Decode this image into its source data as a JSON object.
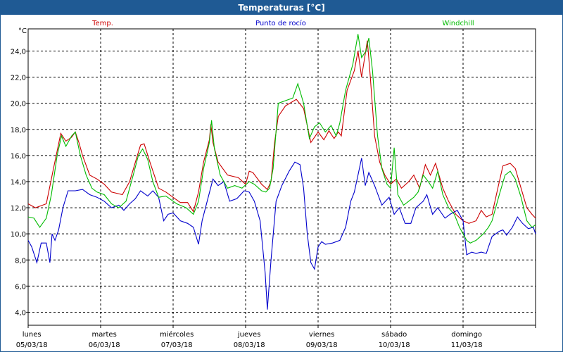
{
  "window": {
    "title": "Temperaturas [°C]"
  },
  "chart_data": {
    "type": "line",
    "title": "Temperaturas [°C]",
    "ylabel": "°C",
    "ylim": [
      3.0,
      25.7
    ],
    "yticks": [
      4,
      6,
      8,
      10,
      12,
      14,
      16,
      18,
      20,
      22,
      24
    ],
    "ytick_labels": [
      "4,0",
      "6,0",
      "8,0",
      "10,0",
      "12,0",
      "14,0",
      "16,0",
      "18,0",
      "20,0",
      "22,0",
      "24,0"
    ],
    "xlim": [
      0,
      7
    ],
    "x_ticks": [
      {
        "x": 0,
        "day": "lunes",
        "date": "05/03/18"
      },
      {
        "x": 1,
        "day": "martes",
        "date": "06/03/18"
      },
      {
        "x": 2,
        "day": "miércoles",
        "date": "07/03/18"
      },
      {
        "x": 3,
        "day": "jueves",
        "date": "08/03/18"
      },
      {
        "x": 4,
        "day": "viernes",
        "date": "09/03/18"
      },
      {
        "x": 5,
        "day": "sábado",
        "date": "10/03/18"
      },
      {
        "x": 6,
        "day": "domingo",
        "date": "11/03/18"
      }
    ],
    "grid": true,
    "series": [
      {
        "name": "Temp.",
        "color": "#cc0000",
        "points": [
          [
            0,
            12.3
          ],
          [
            0.1,
            12.0
          ],
          [
            0.25,
            12.3
          ],
          [
            0.35,
            15.0
          ],
          [
            0.45,
            17.7
          ],
          [
            0.52,
            17.1
          ],
          [
            0.6,
            17.4
          ],
          [
            0.65,
            17.8
          ],
          [
            0.7,
            17.0
          ],
          [
            0.75,
            16.0
          ],
          [
            0.85,
            14.5
          ],
          [
            0.95,
            14.2
          ],
          [
            1.05,
            13.8
          ],
          [
            1.15,
            13.2
          ],
          [
            1.3,
            13.0
          ],
          [
            1.4,
            14.0
          ],
          [
            1.48,
            15.5
          ],
          [
            1.55,
            16.8
          ],
          [
            1.6,
            16.9
          ],
          [
            1.68,
            15.5
          ],
          [
            1.8,
            13.5
          ],
          [
            1.9,
            13.2
          ],
          [
            2.1,
            12.4
          ],
          [
            2.2,
            12.4
          ],
          [
            2.28,
            11.7
          ],
          [
            2.35,
            13.2
          ],
          [
            2.42,
            15.5
          ],
          [
            2.5,
            17.2
          ],
          [
            2.52,
            18.4
          ],
          [
            2.55,
            17.0
          ],
          [
            2.62,
            15.5
          ],
          [
            2.75,
            14.5
          ],
          [
            2.9,
            14.3
          ],
          [
            3.0,
            13.8
          ],
          [
            3.05,
            14.8
          ],
          [
            3.1,
            14.7
          ],
          [
            3.22,
            13.8
          ],
          [
            3.3,
            13.4
          ],
          [
            3.35,
            14.0
          ],
          [
            3.4,
            17.0
          ],
          [
            3.45,
            19.0
          ],
          [
            3.55,
            19.8
          ],
          [
            3.7,
            20.3
          ],
          [
            3.8,
            19.6
          ],
          [
            3.9,
            17.0
          ],
          [
            4.0,
            17.8
          ],
          [
            4.08,
            17.2
          ],
          [
            4.15,
            17.9
          ],
          [
            4.22,
            17.3
          ],
          [
            4.28,
            17.8
          ],
          [
            4.32,
            17.5
          ],
          [
            4.4,
            21.0
          ],
          [
            4.5,
            22.5
          ],
          [
            4.55,
            24.0
          ],
          [
            4.6,
            22.0
          ],
          [
            4.68,
            24.8
          ],
          [
            4.72,
            22.0
          ],
          [
            4.78,
            17.5
          ],
          [
            4.85,
            15.5
          ],
          [
            4.92,
            14.5
          ],
          [
            5.0,
            13.8
          ],
          [
            5.08,
            14.2
          ],
          [
            5.15,
            13.5
          ],
          [
            5.25,
            14.0
          ],
          [
            5.32,
            14.5
          ],
          [
            5.4,
            13.5
          ],
          [
            5.48,
            15.3
          ],
          [
            5.55,
            14.5
          ],
          [
            5.62,
            15.4
          ],
          [
            5.72,
            13.5
          ],
          [
            5.8,
            12.5
          ],
          [
            5.9,
            11.5
          ],
          [
            6.0,
            11.0
          ],
          [
            6.08,
            10.8
          ],
          [
            6.18,
            11.0
          ],
          [
            6.25,
            11.8
          ],
          [
            6.32,
            11.3
          ],
          [
            6.4,
            11.5
          ],
          [
            6.48,
            13.5
          ],
          [
            6.55,
            15.2
          ],
          [
            6.65,
            15.4
          ],
          [
            6.72,
            15.0
          ],
          [
            6.8,
            13.5
          ],
          [
            6.88,
            12.0
          ],
          [
            6.95,
            11.5
          ],
          [
            7.0,
            11.2
          ]
        ]
      },
      {
        "name": "Punto de rocío",
        "color": "#0000cc",
        "points": [
          [
            0,
            9.5
          ],
          [
            0.05,
            9.0
          ],
          [
            0.12,
            7.8
          ],
          [
            0.18,
            9.3
          ],
          [
            0.25,
            9.3
          ],
          [
            0.3,
            7.8
          ],
          [
            0.33,
            10.0
          ],
          [
            0.37,
            9.5
          ],
          [
            0.42,
            10.3
          ],
          [
            0.48,
            12.0
          ],
          [
            0.55,
            13.3
          ],
          [
            0.65,
            13.3
          ],
          [
            0.75,
            13.4
          ],
          [
            0.85,
            13.0
          ],
          [
            0.95,
            12.8
          ],
          [
            1.05,
            12.5
          ],
          [
            1.15,
            12.0
          ],
          [
            1.25,
            12.2
          ],
          [
            1.32,
            11.8
          ],
          [
            1.4,
            12.3
          ],
          [
            1.48,
            12.7
          ],
          [
            1.55,
            13.3
          ],
          [
            1.65,
            12.9
          ],
          [
            1.72,
            13.3
          ],
          [
            1.8,
            12.8
          ],
          [
            1.87,
            11.0
          ],
          [
            1.93,
            11.5
          ],
          [
            2.0,
            11.6
          ],
          [
            2.1,
            11.0
          ],
          [
            2.2,
            10.8
          ],
          [
            2.28,
            10.5
          ],
          [
            2.35,
            9.2
          ],
          [
            2.4,
            11.0
          ],
          [
            2.47,
            12.5
          ],
          [
            2.55,
            14.2
          ],
          [
            2.62,
            13.7
          ],
          [
            2.7,
            14.0
          ],
          [
            2.78,
            12.5
          ],
          [
            2.88,
            12.7
          ],
          [
            2.98,
            13.3
          ],
          [
            3.05,
            13.2
          ],
          [
            3.12,
            12.5
          ],
          [
            3.2,
            11.0
          ],
          [
            3.27,
            7.0
          ],
          [
            3.3,
            4.2
          ],
          [
            3.35,
            8.0
          ],
          [
            3.42,
            12.5
          ],
          [
            3.5,
            13.7
          ],
          [
            3.6,
            14.8
          ],
          [
            3.68,
            15.5
          ],
          [
            3.75,
            15.3
          ],
          [
            3.8,
            13.5
          ],
          [
            3.85,
            10.0
          ],
          [
            3.9,
            7.8
          ],
          [
            3.95,
            7.3
          ],
          [
            4.0,
            9.0
          ],
          [
            4.05,
            9.4
          ],
          [
            4.1,
            9.2
          ],
          [
            4.2,
            9.3
          ],
          [
            4.3,
            9.5
          ],
          [
            4.38,
            10.5
          ],
          [
            4.45,
            12.5
          ],
          [
            4.5,
            13.2
          ],
          [
            4.55,
            14.5
          ],
          [
            4.6,
            15.8
          ],
          [
            4.65,
            13.7
          ],
          [
            4.7,
            14.7
          ],
          [
            4.78,
            13.7
          ],
          [
            4.88,
            12.2
          ],
          [
            4.98,
            12.8
          ],
          [
            5.05,
            11.5
          ],
          [
            5.12,
            12.0
          ],
          [
            5.2,
            10.8
          ],
          [
            5.28,
            10.8
          ],
          [
            5.35,
            12.0
          ],
          [
            5.45,
            12.5
          ],
          [
            5.5,
            13.0
          ],
          [
            5.58,
            11.5
          ],
          [
            5.65,
            12.0
          ],
          [
            5.75,
            11.2
          ],
          [
            5.82,
            11.5
          ],
          [
            5.92,
            11.8
          ],
          [
            6.0,
            11.0
          ],
          [
            6.05,
            8.4
          ],
          [
            6.12,
            8.6
          ],
          [
            6.18,
            8.5
          ],
          [
            6.25,
            8.6
          ],
          [
            6.32,
            8.5
          ],
          [
            6.4,
            9.8
          ],
          [
            6.5,
            10.2
          ],
          [
            6.55,
            10.3
          ],
          [
            6.6,
            9.9
          ],
          [
            6.68,
            10.5
          ],
          [
            6.75,
            11.3
          ],
          [
            6.82,
            10.8
          ],
          [
            6.9,
            10.4
          ],
          [
            6.97,
            10.5
          ],
          [
            7.0,
            10.0
          ]
        ]
      },
      {
        "name": "Windchill",
        "color": "#00bb00",
        "points": [
          [
            0,
            11.3
          ],
          [
            0.08,
            11.2
          ],
          [
            0.16,
            10.5
          ],
          [
            0.25,
            11.2
          ],
          [
            0.32,
            13.0
          ],
          [
            0.4,
            16.0
          ],
          [
            0.46,
            17.5
          ],
          [
            0.52,
            16.7
          ],
          [
            0.6,
            17.5
          ],
          [
            0.65,
            17.8
          ],
          [
            0.72,
            16.0
          ],
          [
            0.8,
            14.5
          ],
          [
            0.88,
            13.5
          ],
          [
            0.95,
            13.2
          ],
          [
            1.05,
            13.0
          ],
          [
            1.15,
            12.3
          ],
          [
            1.25,
            12.0
          ],
          [
            1.35,
            12.5
          ],
          [
            1.45,
            14.5
          ],
          [
            1.52,
            16.0
          ],
          [
            1.58,
            16.5
          ],
          [
            1.65,
            15.7
          ],
          [
            1.72,
            14.0
          ],
          [
            1.8,
            12.8
          ],
          [
            1.9,
            12.9
          ],
          [
            2.05,
            12.3
          ],
          [
            2.18,
            12.0
          ],
          [
            2.28,
            11.5
          ],
          [
            2.35,
            12.5
          ],
          [
            2.42,
            15.0
          ],
          [
            2.5,
            17.0
          ],
          [
            2.53,
            18.7
          ],
          [
            2.57,
            16.5
          ],
          [
            2.65,
            14.5
          ],
          [
            2.75,
            13.5
          ],
          [
            2.85,
            13.7
          ],
          [
            2.95,
            13.5
          ],
          [
            3.05,
            14.0
          ],
          [
            3.12,
            13.8
          ],
          [
            3.22,
            13.3
          ],
          [
            3.28,
            13.2
          ],
          [
            3.33,
            13.5
          ],
          [
            3.38,
            15.0
          ],
          [
            3.45,
            20.0
          ],
          [
            3.55,
            20.2
          ],
          [
            3.65,
            20.4
          ],
          [
            3.72,
            21.5
          ],
          [
            3.8,
            20.0
          ],
          [
            3.88,
            17.3
          ],
          [
            3.95,
            18.2
          ],
          [
            4.02,
            18.5
          ],
          [
            4.1,
            17.8
          ],
          [
            4.18,
            18.3
          ],
          [
            4.25,
            17.5
          ],
          [
            4.3,
            18.5
          ],
          [
            4.38,
            21.0
          ],
          [
            4.48,
            23.0
          ],
          [
            4.55,
            25.3
          ],
          [
            4.6,
            23.5
          ],
          [
            4.66,
            24.0
          ],
          [
            4.7,
            25.0
          ],
          [
            4.75,
            22.5
          ],
          [
            4.82,
            17.5
          ],
          [
            4.88,
            15.0
          ],
          [
            4.95,
            13.8
          ],
          [
            5.0,
            13.5
          ],
          [
            5.05,
            16.6
          ],
          [
            5.1,
            13.0
          ],
          [
            5.18,
            12.2
          ],
          [
            5.25,
            12.5
          ],
          [
            5.32,
            12.8
          ],
          [
            5.38,
            13.2
          ],
          [
            5.45,
            14.5
          ],
          [
            5.52,
            14.0
          ],
          [
            5.58,
            13.5
          ],
          [
            5.65,
            14.8
          ],
          [
            5.72,
            13.0
          ],
          [
            5.8,
            12.0
          ],
          [
            5.88,
            11.5
          ],
          [
            5.95,
            10.5
          ],
          [
            6.0,
            10.0
          ],
          [
            6.05,
            9.5
          ],
          [
            6.1,
            9.3
          ],
          [
            6.18,
            9.5
          ],
          [
            6.28,
            10.0
          ],
          [
            6.35,
            10.5
          ],
          [
            6.4,
            11.0
          ],
          [
            6.5,
            13.0
          ],
          [
            6.58,
            14.5
          ],
          [
            6.65,
            14.8
          ],
          [
            6.72,
            14.2
          ],
          [
            6.8,
            12.8
          ],
          [
            6.88,
            11.0
          ],
          [
            6.95,
            10.5
          ],
          [
            7.0,
            10.7
          ]
        ]
      }
    ]
  }
}
